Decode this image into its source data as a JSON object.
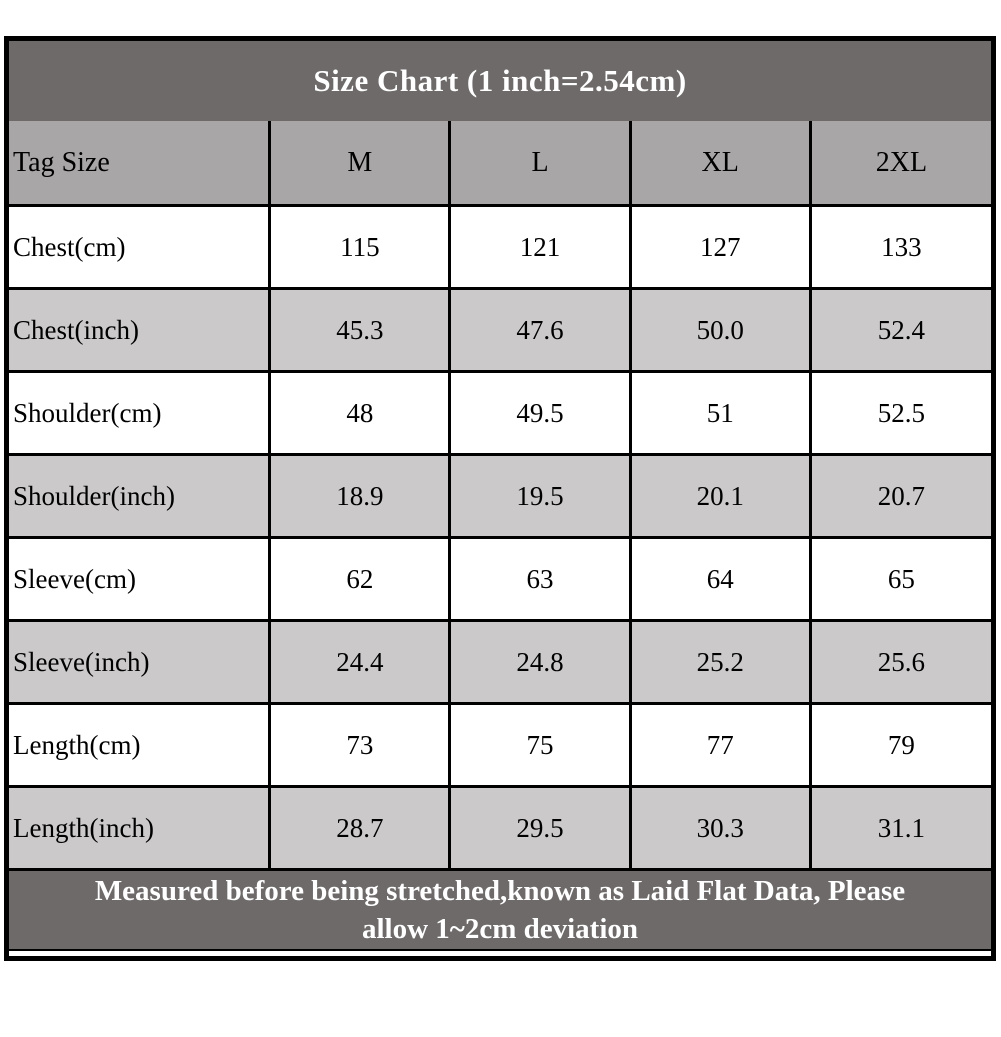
{
  "title": "Size Chart (1 inch=2.54cm)",
  "footer": {
    "line1": "Measured before being stretched,known as Laid Flat Data, Please",
    "line2": "allow 1~2cm deviation"
  },
  "colors": {
    "title_bg": "#6E6A6A",
    "header_bg": "#A9A6A7",
    "row_alt_bg": "#CBC9CA",
    "row_bg": "#FFFFFF",
    "border": "#000000",
    "title_text": "#FFFFFF",
    "cell_text": "#000000"
  },
  "chart_data": {
    "type": "table",
    "title": "Size Chart (1 inch=2.54cm)",
    "columns": [
      "Tag Size",
      "M",
      "L",
      "XL",
      "2XL"
    ],
    "rows": [
      {
        "label": "Chest(cm)",
        "values": [
          "115",
          "121",
          "127",
          "133"
        ]
      },
      {
        "label": "Chest(inch)",
        "values": [
          "45.3",
          "47.6",
          "50.0",
          "52.4"
        ]
      },
      {
        "label": "Shoulder(cm)",
        "values": [
          "48",
          "49.5",
          "51",
          "52.5"
        ]
      },
      {
        "label": "Shoulder(inch)",
        "values": [
          "18.9",
          "19.5",
          "20.1",
          "20.7"
        ]
      },
      {
        "label": "Sleeve(cm)",
        "values": [
          "62",
          "63",
          "64",
          "65"
        ]
      },
      {
        "label": "Sleeve(inch)",
        "values": [
          "24.4",
          "24.8",
          "25.2",
          "25.6"
        ]
      },
      {
        "label": "Length(cm)",
        "values": [
          "73",
          "75",
          "77",
          "79"
        ]
      },
      {
        "label": "Length(inch)",
        "values": [
          "28.7",
          "29.5",
          "30.3",
          "31.1"
        ]
      }
    ],
    "note": "Measured before being stretched,known as Laid Flat Data, Please allow 1~2cm deviation"
  }
}
